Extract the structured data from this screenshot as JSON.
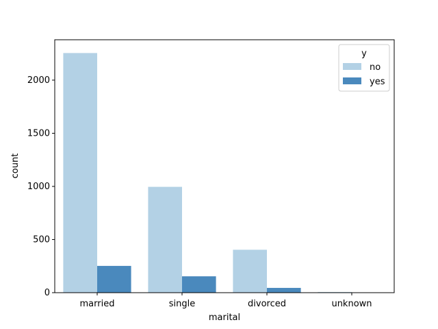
{
  "chart_data": {
    "type": "bar",
    "xlabel": "marital",
    "ylabel": "count",
    "categories": [
      "married",
      "single",
      "divorced",
      "unknown"
    ],
    "legend": {
      "title": "y",
      "placement": "top-right"
    },
    "series": [
      {
        "name": "no",
        "color": "#b3d1e5",
        "values": [
          2255,
          996,
          404,
          6
        ]
      },
      {
        "name": "yes",
        "color": "#4a89bd",
        "values": [
          252,
          154,
          45,
          2
        ]
      }
    ],
    "ylim": [
      0,
      2380
    ],
    "yticks": [
      0,
      500,
      1000,
      1500,
      2000
    ],
    "grid": false
  }
}
